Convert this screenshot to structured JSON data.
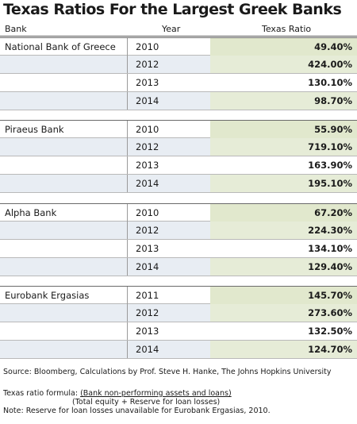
{
  "chart_data": {
    "type": "table",
    "title": "Texas Ratios For the Largest Greek Banks",
    "columns": [
      "Bank",
      "Year",
      "Texas Ratio"
    ],
    "groups": [
      {
        "bank": "National Bank of Greece",
        "rows": [
          {
            "year": "2010",
            "ratio": "49.40%"
          },
          {
            "year": "2012",
            "ratio": "424.00%"
          },
          {
            "year": "2013",
            "ratio": "130.10%"
          },
          {
            "year": "2014",
            "ratio": "98.70%"
          }
        ]
      },
      {
        "bank": "Piraeus Bank",
        "rows": [
          {
            "year": "2010",
            "ratio": "55.90%"
          },
          {
            "year": "2012",
            "ratio": "719.10%"
          },
          {
            "year": "2013",
            "ratio": "163.90%"
          },
          {
            "year": "2014",
            "ratio": "195.10%"
          }
        ]
      },
      {
        "bank": "Alpha Bank",
        "rows": [
          {
            "year": "2010",
            "ratio": "67.20%"
          },
          {
            "year": "2012",
            "ratio": "224.30%"
          },
          {
            "year": "2013",
            "ratio": "134.10%"
          },
          {
            "year": "2014",
            "ratio": "129.40%"
          }
        ]
      },
      {
        "bank": "Eurobank Ergasias",
        "rows": [
          {
            "year": "2011",
            "ratio": "145.70%"
          },
          {
            "year": "2012",
            "ratio": "273.60%"
          },
          {
            "year": "2013",
            "ratio": "132.50%"
          },
          {
            "year": "2014",
            "ratio": "124.70%"
          }
        ]
      }
    ]
  },
  "footer": {
    "source": "Source: Bloomberg, Calculations by Prof. Steve H. Hanke, The Johns Hopkins University",
    "formula_label": "Texas ratio formula: ",
    "formula_numerator": "(Bank non-performing assets and loans)",
    "formula_denominator": "(Total equity + Reserve for loan losses)",
    "note": "Note: Reserve for loan losses unavailable for Eurobank Ergasias, 2010."
  }
}
